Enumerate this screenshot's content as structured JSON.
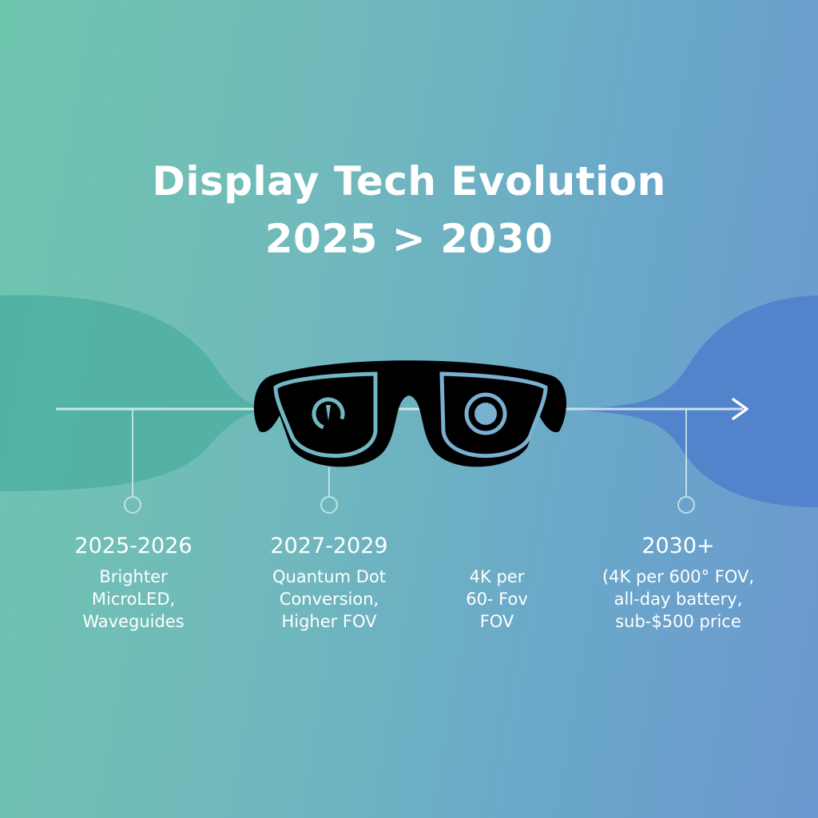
{
  "title": {
    "line1": "Display Tech Evolution",
    "line2": "2025 > 2030"
  },
  "colors": {
    "left_blob": "#4aae9f",
    "right_blob": "#4d7fcc",
    "glasses": "#000000",
    "lens_accent": "#72b8c4"
  },
  "timeline": [
    {
      "period": "2025-2026",
      "lines": [
        "Brighter",
        "MicroLED,",
        "Waveguides"
      ]
    },
    {
      "period": "2027-2029",
      "lines": [
        "Quantum Dot",
        "Conversion,",
        "Higher FOV"
      ]
    },
    {
      "period": "",
      "lines": [
        "4K per",
        "60- Fov",
        "FOV"
      ]
    },
    {
      "period": "2030+",
      "lines": [
        "(4K per 600° FOV,",
        "all-day battery,",
        "sub-$500 price"
      ]
    }
  ],
  "icons": {
    "center": "smart-glasses-icon",
    "arrow": "arrow-right-icon"
  }
}
